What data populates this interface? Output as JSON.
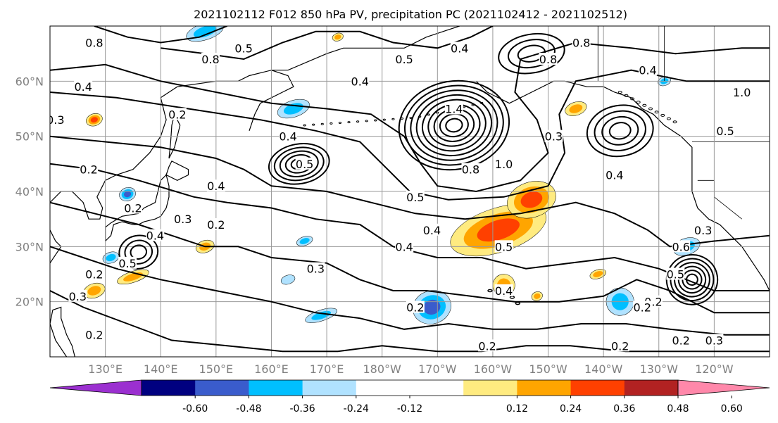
{
  "chart_data": {
    "type": "contour_map",
    "title": "2021102112 F012 850 hPa PV, precipitation PC (2021102412 - 2021102512)",
    "map_extent": {
      "lon_min": 120,
      "lon_max": 250,
      "lat_min": 10,
      "lat_max": 70
    },
    "grid": true,
    "lon_ticks": [
      {
        "lon": 130,
        "label": "130°E"
      },
      {
        "lon": 140,
        "label": "140°E"
      },
      {
        "lon": 150,
        "label": "150°E"
      },
      {
        "lon": 160,
        "label": "160°E"
      },
      {
        "lon": 170,
        "label": "170°E"
      },
      {
        "lon": 180,
        "label": "180°W"
      },
      {
        "lon": 190,
        "label": "170°W"
      },
      {
        "lon": 200,
        "label": "160°W"
      },
      {
        "lon": 210,
        "label": "150°W"
      },
      {
        "lon": 220,
        "label": "140°W"
      },
      {
        "lon": 230,
        "label": "130°W"
      },
      {
        "lon": 240,
        "label": "120°W"
      }
    ],
    "lat_ticks": [
      {
        "lat": 20,
        "label": "20°N"
      },
      {
        "lat": 30,
        "label": "30°N"
      },
      {
        "lat": 40,
        "label": "40°N"
      },
      {
        "lat": 50,
        "label": "50°N"
      },
      {
        "lat": 60,
        "label": "60°N"
      }
    ],
    "colorbar": {
      "colors": [
        "#9b30d0",
        "#000080",
        "#3a5ccc",
        "#00bfff",
        "#b0e2ff",
        "#ffffff",
        "#ffffff",
        "#ffeb80",
        "#ffa500",
        "#ff4000",
        "#b22222",
        "#ff88aa"
      ],
      "tick_labels": [
        "-0.60",
        "-0.48",
        "-0.36",
        "-0.24",
        "-0.12",
        "0.12",
        "0.24",
        "0.36",
        "0.48",
        "0.60"
      ],
      "extend": "both"
    },
    "contour_labels": [
      {
        "text": "0.8",
        "lon": 128,
        "lat": 67
      },
      {
        "text": "0.5",
        "lon": 155,
        "lat": 66
      },
      {
        "text": "0.8",
        "lon": 149,
        "lat": 64
      },
      {
        "text": "0.4",
        "lon": 126,
        "lat": 59
      },
      {
        "text": "0.2",
        "lon": 143,
        "lat": 54
      },
      {
        "text": "0.3",
        "lon": 121,
        "lat": 53
      },
      {
        "text": "0.4",
        "lon": 163,
        "lat": 50
      },
      {
        "text": "0.2",
        "lon": 127,
        "lat": 44
      },
      {
        "text": "0.5",
        "lon": 166,
        "lat": 45
      },
      {
        "text": "0.4",
        "lon": 150,
        "lat": 41
      },
      {
        "text": "0.2",
        "lon": 135,
        "lat": 37
      },
      {
        "text": "0.3",
        "lon": 144,
        "lat": 35
      },
      {
        "text": "0.2",
        "lon": 150,
        "lat": 34
      },
      {
        "text": "0.4",
        "lon": 139,
        "lat": 32
      },
      {
        "text": "0.5",
        "lon": 134,
        "lat": 27
      },
      {
        "text": "0.2",
        "lon": 128,
        "lat": 25
      },
      {
        "text": "0.3",
        "lon": 125,
        "lat": 21
      },
      {
        "text": "0.2",
        "lon": 128,
        "lat": 14
      },
      {
        "text": "0.3",
        "lon": 168,
        "lat": 26
      },
      {
        "text": "0.4",
        "lon": 176,
        "lat": 60
      },
      {
        "text": "0.5",
        "lon": 184,
        "lat": 64
      },
      {
        "text": "0.4",
        "lon": 194,
        "lat": 66
      },
      {
        "text": "1.4",
        "lon": 193,
        "lat": 55
      },
      {
        "text": "0.8",
        "lon": 196,
        "lat": 44
      },
      {
        "text": "1.0",
        "lon": 202,
        "lat": 45
      },
      {
        "text": "0.5",
        "lon": 186,
        "lat": 39
      },
      {
        "text": "0.4",
        "lon": 189,
        "lat": 33
      },
      {
        "text": "0.5",
        "lon": 202,
        "lat": 30
      },
      {
        "text": "0.4",
        "lon": 184,
        "lat": 30
      },
      {
        "text": "0.4",
        "lon": 202,
        "lat": 22
      },
      {
        "text": "0.2",
        "lon": 186,
        "lat": 19
      },
      {
        "text": "0.2",
        "lon": 199,
        "lat": 12
      },
      {
        "text": "0.8",
        "lon": 210,
        "lat": 64
      },
      {
        "text": "0.8",
        "lon": 216,
        "lat": 67
      },
      {
        "text": "0.4",
        "lon": 228,
        "lat": 62
      },
      {
        "text": "0.3",
        "lon": 211,
        "lat": 50
      },
      {
        "text": "0.4",
        "lon": 222,
        "lat": 43
      },
      {
        "text": "1.0",
        "lon": 245,
        "lat": 58
      },
      {
        "text": "0.5",
        "lon": 242,
        "lat": 51
      },
      {
        "text": "0.2",
        "lon": 229,
        "lat": 20
      },
      {
        "text": "0.2",
        "lon": 227,
        "lat": 19
      },
      {
        "text": "0.3",
        "lon": 238,
        "lat": 33
      },
      {
        "text": "0.6",
        "lon": 234,
        "lat": 30
      },
      {
        "text": "0.5",
        "lon": 233,
        "lat": 25
      },
      {
        "text": "0.2",
        "lon": 234,
        "lat": 13
      },
      {
        "text": "0.3",
        "lon": 240,
        "lat": 13
      },
      {
        "text": "0.2",
        "lon": 223,
        "lat": 12
      }
    ],
    "closed_lows": [
      {
        "lon": 193,
        "lat": 52,
        "rx": 10,
        "ry": 8,
        "rings": 9
      },
      {
        "lon": 165,
        "lat": 45,
        "rx": 5.5,
        "ry": 3.6,
        "rings": 5
      },
      {
        "lon": 223,
        "lat": 51,
        "rx": 6,
        "ry": 4.6,
        "rings": 4
      },
      {
        "lon": 236,
        "lat": 24,
        "rx": 4.6,
        "ry": 4.5,
        "rings": 6
      },
      {
        "lon": 136,
        "lat": 29,
        "rx": 3.5,
        "ry": 3,
        "rings": 3
      },
      {
        "lon": 207,
        "lat": 65,
        "rx": 6,
        "ry": 3.5,
        "rings": 3
      }
    ],
    "positive_precip_regions": [
      {
        "lon": 201,
        "lat": 33,
        "rx": 9,
        "ry": 4,
        "level": 0.36
      },
      {
        "lon": 207,
        "lat": 38.5,
        "rx": 4.5,
        "ry": 3.2,
        "level": 0.36
      },
      {
        "lon": 202,
        "lat": 23,
        "rx": 2,
        "ry": 2,
        "level": 0.24
      },
      {
        "lon": 128,
        "lat": 22,
        "rx": 2,
        "ry": 1.3,
        "level": 0.24
      },
      {
        "lon": 135,
        "lat": 24.5,
        "rx": 3,
        "ry": 1,
        "level": 0.24
      },
      {
        "lon": 148,
        "lat": 30,
        "rx": 1.7,
        "ry": 1.1,
        "level": 0.24
      },
      {
        "lon": 128,
        "lat": 53,
        "rx": 1.5,
        "ry": 1.1,
        "level": 0.36
      },
      {
        "lon": 215,
        "lat": 55,
        "rx": 2,
        "ry": 1.2,
        "level": 0.24
      },
      {
        "lon": 172,
        "lat": 68,
        "rx": 1,
        "ry": 0.7,
        "level": 0.24
      },
      {
        "lon": 208,
        "lat": 21,
        "rx": 1,
        "ry": 0.8,
        "level": 0.24
      },
      {
        "lon": 219,
        "lat": 25,
        "rx": 1.5,
        "ry": 0.8,
        "level": 0.24
      }
    ],
    "negative_precip_regions": [
      {
        "lon": 189,
        "lat": 19,
        "rx": 3.5,
        "ry": 3,
        "level": -0.36
      },
      {
        "lon": 223,
        "lat": 20,
        "rx": 2.5,
        "ry": 2.5,
        "level": -0.24
      },
      {
        "lon": 235,
        "lat": 30,
        "rx": 2.5,
        "ry": 1.5,
        "level": -0.24
      },
      {
        "lon": 148,
        "lat": 69,
        "rx": 3.5,
        "ry": 1.5,
        "level": -0.24
      },
      {
        "lon": 134,
        "lat": 39.5,
        "rx": 1.5,
        "ry": 1.2,
        "level": -0.36
      },
      {
        "lon": 169,
        "lat": 17.5,
        "rx": 3,
        "ry": 1,
        "level": -0.24
      },
      {
        "lon": 164,
        "lat": 55,
        "rx": 3,
        "ry": 1.5,
        "level": -0.24
      },
      {
        "lon": 163,
        "lat": 24,
        "rx": 1.3,
        "ry": 0.8,
        "level": -0.12
      },
      {
        "lon": 166,
        "lat": 31,
        "rx": 1.5,
        "ry": 0.8,
        "level": -0.24
      },
      {
        "lon": 131,
        "lat": 28,
        "rx": 1.5,
        "ry": 1,
        "level": -0.24
      },
      {
        "lon": 231,
        "lat": 60,
        "rx": 1.2,
        "ry": 0.8,
        "level": -0.24
      }
    ]
  }
}
